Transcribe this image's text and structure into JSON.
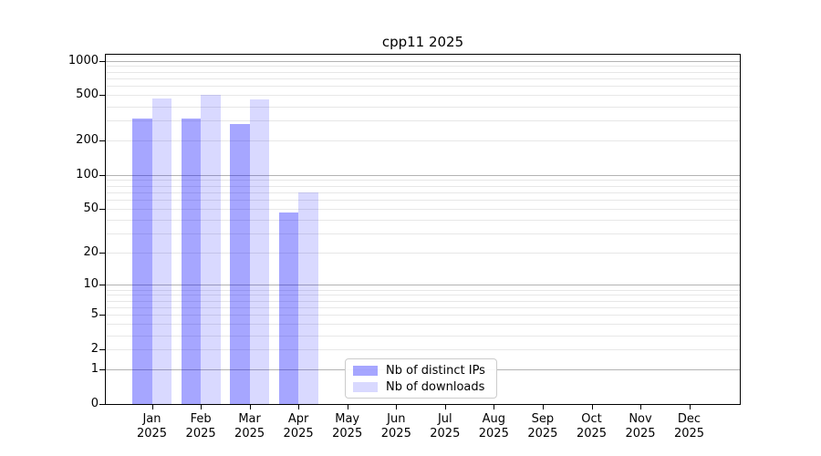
{
  "window": {
    "background": "#ffffff"
  },
  "chart_data": {
    "type": "bar",
    "title": "cpp11 2025",
    "categories": [
      "Jan",
      "Feb",
      "Mar",
      "Apr",
      "May",
      "Jun",
      "Jul",
      "Aug",
      "Sep",
      "Oct",
      "Nov",
      "Dec"
    ],
    "category_year": "2025",
    "series": [
      {
        "name": "Nb of distinct IPs",
        "color": "rgba(0,0,255,0.35)",
        "color_hex": "#a6a6f7",
        "values": [
          315,
          313,
          280,
          46,
          0,
          0,
          0,
          0,
          0,
          0,
          0,
          0
        ]
      },
      {
        "name": "Nb of downloads",
        "color": "rgba(0,0,255,0.15)",
        "color_hex": "#d9d9fa",
        "values": [
          470,
          505,
          462,
          70,
          0,
          0,
          0,
          0,
          0,
          0,
          0,
          0
        ]
      }
    ],
    "yscale": "log1p",
    "ylim": [
      0,
      1130
    ],
    "yticks": [
      1000,
      500,
      200,
      100,
      50,
      20,
      10,
      5,
      2,
      1,
      0
    ],
    "grid": true,
    "legend_position": "lower-center",
    "colors": {
      "grid_major": "#b3b3b3",
      "grid_minor": "#e7e7e7",
      "spine": "#000000",
      "legend_border": "#cccccc"
    }
  }
}
